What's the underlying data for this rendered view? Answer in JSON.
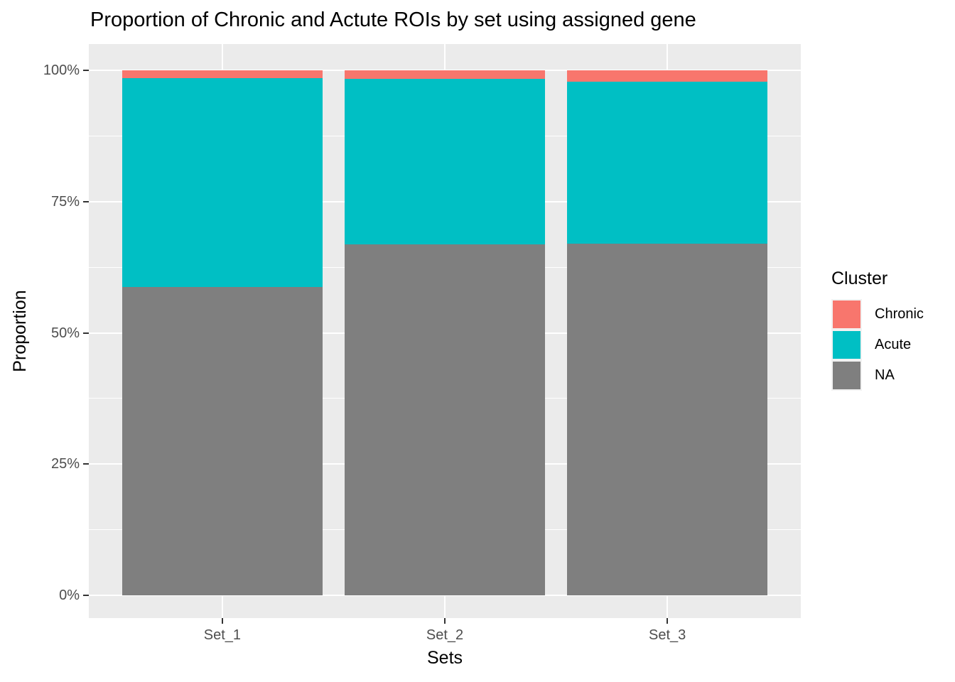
{
  "chart_data": {
    "type": "bar",
    "stacked": true,
    "title": "Proportion of Chronic and Actute ROIs by set using assigned gene",
    "xlabel": "Sets",
    "ylabel": "Proportion",
    "legend_title": "Cluster",
    "legend_position": "right",
    "categories": [
      "Set_1",
      "Set_2",
      "Set_3"
    ],
    "series": [
      {
        "name": "Chronic",
        "color": "#F8766D",
        "values": [
          0.015,
          0.016,
          0.022
        ]
      },
      {
        "name": "Acute",
        "color": "#00BFC4",
        "values": [
          0.398,
          0.315,
          0.308
        ]
      },
      {
        "name": "NA",
        "color": "#7F7F7F",
        "values": [
          0.587,
          0.669,
          0.67
        ]
      }
    ],
    "ylim": [
      0,
      1
    ],
    "y_ticks": [
      {
        "value": 0,
        "label": "0%"
      },
      {
        "value": 0.25,
        "label": "25%"
      },
      {
        "value": 0.5,
        "label": "50%"
      },
      {
        "value": 0.75,
        "label": "75%"
      },
      {
        "value": 1.0,
        "label": "100%"
      }
    ],
    "y_minor": [
      0.125,
      0.375,
      0.625,
      0.875
    ],
    "grid": true,
    "colors": {
      "panel_background": "#EBEBEB",
      "grid": "#FFFFFF",
      "axis_text": "#4D4D4D",
      "tick_mark": "#333333",
      "legend_key_background": "#F2F2F2",
      "title_text": "#000000"
    }
  }
}
